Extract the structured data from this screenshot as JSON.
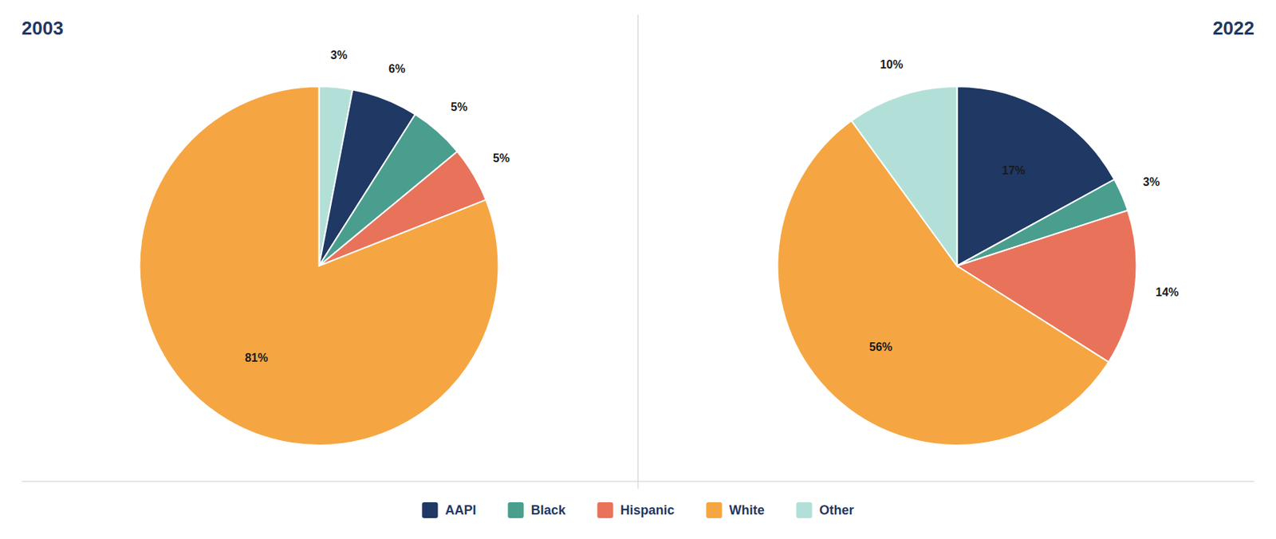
{
  "chart_data": [
    {
      "type": "pie",
      "title": "2003",
      "categories": [
        "Other",
        "AAPI",
        "Black",
        "Hispanic",
        "White"
      ],
      "values": [
        3,
        6,
        5,
        5,
        81
      ],
      "value_labels": [
        "3%",
        "6%",
        "5%",
        "5%",
        "81%"
      ],
      "colors": [
        "#b2e0d8",
        "#1f3864",
        "#4a9e8e",
        "#e8735a",
        "#f5a642"
      ],
      "data_labels": true
    },
    {
      "type": "pie",
      "title": "2022",
      "categories": [
        "AAPI",
        "Black",
        "Hispanic",
        "White",
        "Other"
      ],
      "values": [
        17,
        3,
        14,
        56,
        10
      ],
      "value_labels": [
        "17%",
        "3%",
        "14%",
        "56%",
        "10%"
      ],
      "colors": [
        "#1f3864",
        "#4a9e8e",
        "#e8735a",
        "#f5a642",
        "#b2e0d8"
      ],
      "data_labels": true,
      "legend": "bottom"
    }
  ]
}
